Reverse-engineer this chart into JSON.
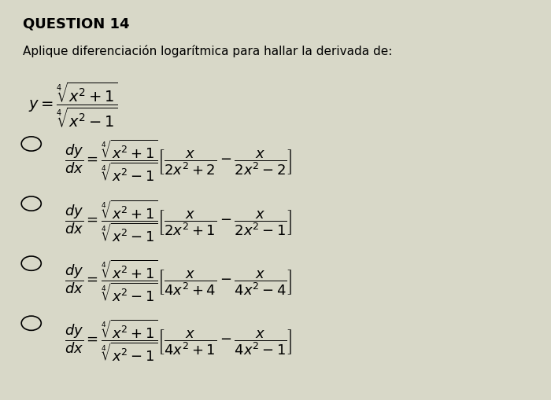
{
  "title": "QUESTION 14",
  "subtitle": "Aplique diferenciación logarítmica para hallar la derivada de:",
  "question_formula": "$y = \\dfrac{\\sqrt[4]{x^{2}+1}}{\\sqrt[4]{x^{2}-1}}$",
  "options": [
    "$\\dfrac{dy}{dx} = \\dfrac{\\sqrt[4]{x^{2}+1}}{\\sqrt[4]{x^{2}-1}}\\left[\\dfrac{x}{2x^{2}+2} - \\dfrac{x}{2x^{2}-2}\\right]$",
    "$\\dfrac{dy}{dx} = \\dfrac{\\sqrt[4]{x^{2}+1}}{\\sqrt[4]{x^{2}-1}}\\left[\\dfrac{x}{2x^{2}+1} - \\dfrac{x}{2x^{2}-1}\\right]$",
    "$\\dfrac{dy}{dx} = \\dfrac{\\sqrt[4]{x^{2}+1}}{\\sqrt[4]{x^{2}-1}}\\left[\\dfrac{x}{4x^{2}+4} - \\dfrac{x}{4x^{2}-4}\\right]$",
    "$\\dfrac{dy}{dx} = \\dfrac{\\sqrt[4]{x^{2}+1}}{\\sqrt[4]{x^{2}-1}}\\left[\\dfrac{x}{4x^{2}+1} - \\dfrac{x}{4x^{2}-1}\\right]$"
  ],
  "bg_color": "#d8d8c8",
  "text_color": "#000000",
  "title_fontsize": 13,
  "subtitle_fontsize": 11,
  "option_fontsize": 13,
  "question_fontsize": 14
}
